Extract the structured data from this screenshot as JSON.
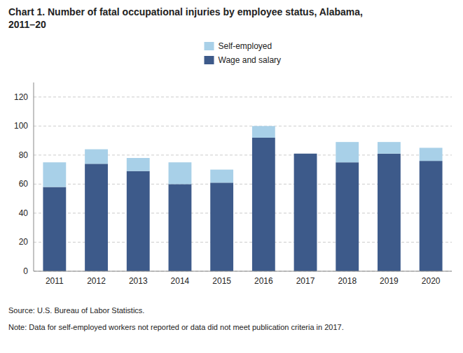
{
  "chart_data": {
    "type": "bar",
    "stacked": true,
    "title": "Chart 1. Number of fatal occupational injuries by employee status, Alabama,\n2011–20",
    "categories": [
      "2011",
      "2012",
      "2013",
      "2014",
      "2015",
      "2016",
      "2017",
      "2018",
      "2019",
      "2020"
    ],
    "series": [
      {
        "name": "Wage and salary",
        "color": "#3d5a8a",
        "values": [
          58,
          74,
          69,
          60,
          61,
          92,
          81,
          75,
          81,
          76
        ]
      },
      {
        "name": "Self-employed",
        "color": "#a8d0e8",
        "values": [
          17,
          10,
          9,
          15,
          9,
          8,
          0,
          14,
          8,
          9
        ]
      }
    ],
    "ylim": [
      0,
      130
    ],
    "yticks": [
      0,
      20,
      40,
      60,
      80,
      100,
      120
    ],
    "grid": true,
    "legend": "top",
    "annotations": [
      "Source: U.S. Bureau of Labor Statistics.",
      "Note: Data for self-employed workers not reported or data did not meet publication criteria in 2017."
    ]
  }
}
